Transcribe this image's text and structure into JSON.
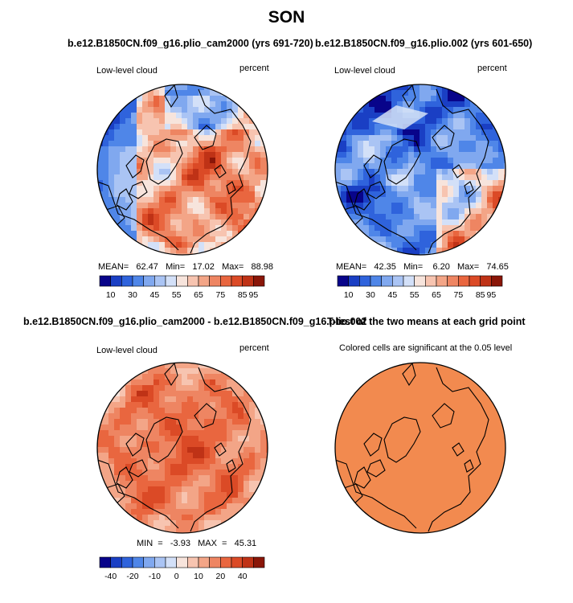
{
  "page": {
    "title": "SON"
  },
  "panels": [
    {
      "id": "p1",
      "title": "b.e12.B1850CN.f09_g16.plio_cam2000 (yrs 691-720)",
      "left_label": "Low-level cloud",
      "right_label": "percent",
      "stats_text": "MEAN=   62.47   Min=   17.02   Max=   88.98",
      "colorbar_ticks": [
        "10",
        "30",
        "45",
        "55",
        "65",
        "75",
        "85",
        "95"
      ]
    },
    {
      "id": "p2",
      "title": "b.e12.B1850CN.f09_g16.plio.002 (yrs 601-650)",
      "left_label": "Low-level cloud",
      "right_label": "percent",
      "stats_text": "MEAN=   42.35   Min=    6.20   Max=   74.65",
      "colorbar_ticks": [
        "10",
        "30",
        "45",
        "55",
        "65",
        "75",
        "85",
        "95"
      ]
    },
    {
      "id": "p3",
      "title": "b.e12.B1850CN.f09_g16.plio_cam2000 - b.e12.B1850CN.f09_g16.plio.002",
      "left_label": "Low-level cloud",
      "right_label": "percent",
      "stats_text": "MIN  =   -3.93   MAX  =   45.31",
      "colorbar_ticks": [
        "-40",
        "-20",
        "-10",
        "0",
        "10",
        "20",
        "40"
      ]
    },
    {
      "id": "p4",
      "title": "T-test of the two means at each grid point",
      "subtitle": "Colored cells are significant at the 0.05 level"
    }
  ],
  "chart_data": [
    {
      "type": "heatmap",
      "projection": "north-polar-stereographic",
      "variable": "Low-level cloud",
      "units": "percent",
      "statistics": {
        "mean": 62.47,
        "min": 17.02,
        "max": 88.98
      },
      "colorbar_ticks": [
        10,
        30,
        45,
        55,
        65,
        75,
        85,
        95
      ],
      "palette": [
        "#08048a",
        "#1a3fc4",
        "#2f63dc",
        "#4f86e8",
        "#80a8ef",
        "#aac4f4",
        "#d3e0f8",
        "#f7e4dc",
        "#f7c4b0",
        "#f3a587",
        "#ee8562",
        "#e9663f",
        "#db4a26",
        "#bf3216",
        "#8a1608"
      ]
    },
    {
      "type": "heatmap",
      "projection": "north-polar-stereographic",
      "variable": "Low-level cloud",
      "units": "percent",
      "statistics": {
        "mean": 42.35,
        "min": 6.2,
        "max": 74.65
      },
      "colorbar_ticks": [
        10,
        30,
        45,
        55,
        65,
        75,
        85,
        95
      ],
      "palette": [
        "#08048a",
        "#1a3fc4",
        "#2f63dc",
        "#4f86e8",
        "#80a8ef",
        "#aac4f4",
        "#d3e0f8",
        "#f7e4dc",
        "#f7c4b0",
        "#f3a587",
        "#ee8562",
        "#e9663f",
        "#db4a26",
        "#bf3216",
        "#8a1608"
      ]
    },
    {
      "type": "heatmap",
      "projection": "north-polar-stereographic",
      "variable": "Low-level cloud difference",
      "units": "percent",
      "statistics": {
        "min": -3.93,
        "max": 45.31
      },
      "colorbar_ticks": [
        -40,
        -20,
        -10,
        0,
        10,
        20,
        40
      ],
      "palette": [
        "#08048a",
        "#1a3fc4",
        "#2f63dc",
        "#4f86e8",
        "#80a8ef",
        "#aac4f4",
        "#d3e0f8",
        "#f7e4dc",
        "#f7c4b0",
        "#f3a587",
        "#ee8562",
        "#e9663f",
        "#db4a26",
        "#bf3216",
        "#8a1608"
      ]
    },
    {
      "type": "heatmap",
      "projection": "north-polar-stereographic",
      "variable": "T-test significance",
      "significance_level": 0.05,
      "fill_color": "#f28a4f"
    }
  ]
}
